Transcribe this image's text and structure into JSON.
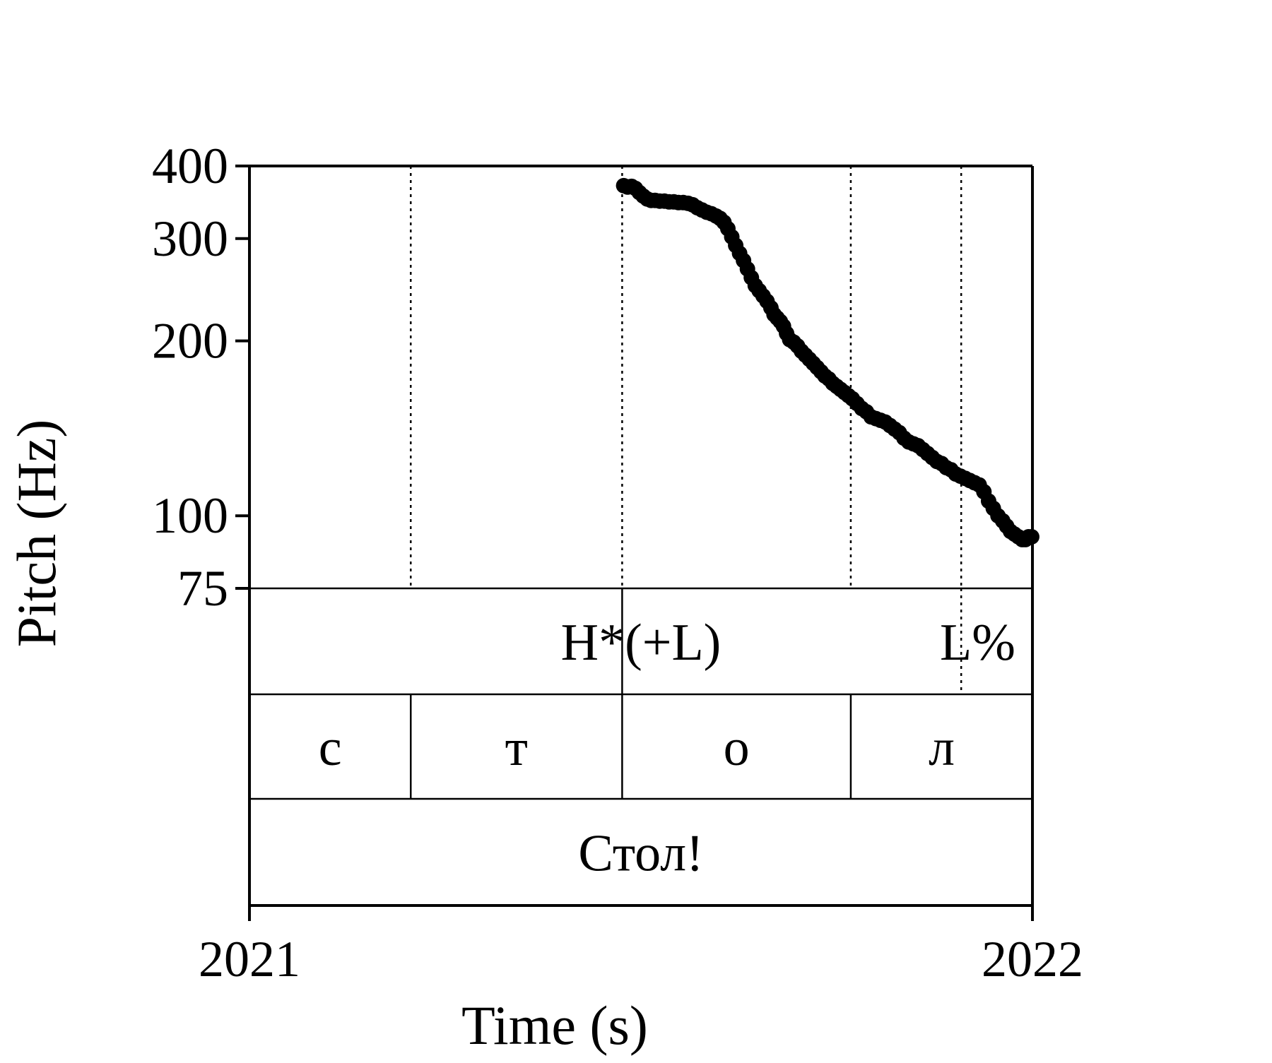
{
  "chart_data": {
    "type": "scatter",
    "xlabel": "Time (s)",
    "ylabel": "Pitch (Hz)",
    "xlim": [
      2021,
      2022
    ],
    "ylim": [
      75,
      400
    ],
    "y_scale": "log",
    "x_ticks": [
      "2021",
      "2022"
    ],
    "y_ticks": [
      {
        "value": 400,
        "label": "400"
      },
      {
        "value": 300,
        "label": "300"
      },
      {
        "value": 200,
        "label": "200"
      },
      {
        "value": 100,
        "label": "100"
      },
      {
        "value": 75,
        "label": "75"
      }
    ],
    "boundaries": [
      2021.206,
      2021.476,
      2021.768,
      2021.909
    ],
    "tones_tier": [
      {
        "text": "H*(+L)",
        "x": 2021.5
      },
      {
        "text": "L%",
        "x": 2021.93
      }
    ],
    "phones_tier": [
      {
        "text": "с",
        "start": 2021.0,
        "end": 2021.206
      },
      {
        "text": "т",
        "start": 2021.206,
        "end": 2021.476
      },
      {
        "text": "о",
        "start": 2021.476,
        "end": 2021.768
      },
      {
        "text": "л",
        "start": 2021.768,
        "end": 2022.0
      }
    ],
    "word_tier": [
      {
        "text": "Стол!",
        "start": 2021.0,
        "end": 2022.0
      }
    ],
    "pitch": [
      [
        2021.478,
        370
      ],
      [
        2021.483,
        368
      ],
      [
        2021.488,
        369
      ],
      [
        2021.493,
        366
      ],
      [
        2021.498,
        360
      ],
      [
        2021.503,
        355
      ],
      [
        2021.508,
        351
      ],
      [
        2021.513,
        349
      ],
      [
        2021.518,
        349
      ],
      [
        2021.524,
        348
      ],
      [
        2021.53,
        348
      ],
      [
        2021.536,
        347
      ],
      [
        2021.542,
        347
      ],
      [
        2021.548,
        346
      ],
      [
        2021.554,
        346
      ],
      [
        2021.56,
        345
      ],
      [
        2021.566,
        343
      ],
      [
        2021.572,
        339
      ],
      [
        2021.578,
        336
      ],
      [
        2021.584,
        333
      ],
      [
        2021.59,
        331
      ],
      [
        2021.596,
        328
      ],
      [
        2021.601,
        325
      ],
      [
        2021.606,
        320
      ],
      [
        2021.611,
        312
      ],
      [
        2021.616,
        302
      ],
      [
        2021.621,
        292
      ],
      [
        2021.626,
        283
      ],
      [
        2021.631,
        275
      ],
      [
        2021.636,
        266
      ],
      [
        2021.641,
        257
      ],
      [
        2021.646,
        249
      ],
      [
        2021.651,
        244
      ],
      [
        2021.656,
        239
      ],
      [
        2021.661,
        234
      ],
      [
        2021.666,
        228
      ],
      [
        2021.67,
        222
      ],
      [
        2021.674,
        219
      ],
      [
        2021.678,
        216
      ],
      [
        2021.682,
        212
      ],
      [
        2021.686,
        206
      ],
      [
        2021.69,
        201
      ],
      [
        2021.695,
        199
      ],
      [
        2021.7,
        196
      ],
      [
        2021.705,
        192
      ],
      [
        2021.71,
        189
      ],
      [
        2021.715,
        186
      ],
      [
        2021.72,
        183
      ],
      [
        2021.725,
        180
      ],
      [
        2021.73,
        177
      ],
      [
        2021.735,
        174
      ],
      [
        2021.74,
        172
      ],
      [
        2021.745,
        169
      ],
      [
        2021.75,
        167
      ],
      [
        2021.755,
        165
      ],
      [
        2021.76,
        163
      ],
      [
        2021.765,
        161
      ],
      [
        2021.77,
        159
      ],
      [
        2021.776,
        156
      ],
      [
        2021.782,
        153
      ],
      [
        2021.788,
        151
      ],
      [
        2021.794,
        148
      ],
      [
        2021.8,
        147
      ],
      [
        2021.806,
        146
      ],
      [
        2021.812,
        145
      ],
      [
        2021.818,
        143
      ],
      [
        2021.824,
        141
      ],
      [
        2021.83,
        139
      ],
      [
        2021.836,
        136
      ],
      [
        2021.842,
        134
      ],
      [
        2021.848,
        133
      ],
      [
        2021.854,
        132
      ],
      [
        2021.86,
        130
      ],
      [
        2021.866,
        128
      ],
      [
        2021.872,
        126
      ],
      [
        2021.878,
        124
      ],
      [
        2021.884,
        123
      ],
      [
        2021.89,
        121
      ],
      [
        2021.896,
        120
      ],
      [
        2021.902,
        118
      ],
      [
        2021.908,
        117
      ],
      [
        2021.914,
        116
      ],
      [
        2021.92,
        115
      ],
      [
        2021.926,
        114
      ],
      [
        2021.932,
        113
      ],
      [
        2021.938,
        110
      ],
      [
        2021.944,
        106
      ],
      [
        2021.95,
        103
      ],
      [
        2021.956,
        100
      ],
      [
        2021.962,
        98
      ],
      [
        2021.967,
        96
      ],
      [
        2021.972,
        94
      ],
      [
        2021.977,
        93
      ],
      [
        2021.982,
        92
      ],
      [
        2021.987,
        91
      ],
      [
        2021.991,
        91
      ],
      [
        2021.995,
        92
      ],
      [
        2021.999,
        92
      ]
    ]
  }
}
